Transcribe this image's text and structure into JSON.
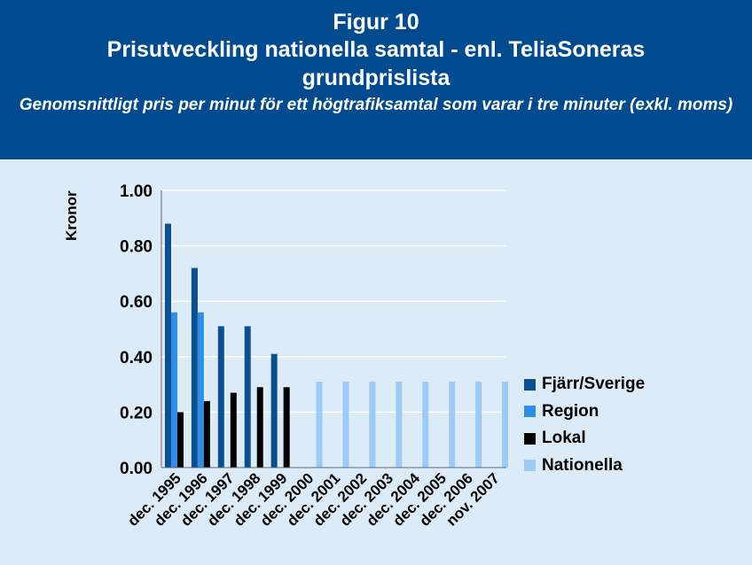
{
  "header": {
    "figure_label": "Figur 10",
    "title": "Prisutveckling nationella samtal - enl. TeliaSoneras grundprislista",
    "subtitle": "Genomsnittligt pris per minut för ett högtrafiksamtal som varar i tre minuter (exkl. moms)"
  },
  "chart_data": {
    "type": "bar",
    "ylabel": "Kronor",
    "ylim": [
      0,
      1
    ],
    "yticks": [
      "0.00",
      "0.20",
      "0.40",
      "0.60",
      "0.80",
      "1.00"
    ],
    "grid": true,
    "legend_position": "right",
    "categories": [
      "dec. 1995",
      "dec. 1996",
      "dec. 1997",
      "dec. 1998",
      "dec. 1999",
      "dec. 2000",
      "dec. 2001",
      "dec. 2002",
      "dec. 2003",
      "dec. 2004",
      "dec. 2005",
      "dec. 2006",
      "nov. 2007"
    ],
    "series": [
      {
        "name": "Fjärr/Sverige",
        "color": "#0a4f8f",
        "values": [
          0.88,
          0.72,
          0.51,
          0.51,
          0.41,
          null,
          null,
          null,
          null,
          null,
          null,
          null,
          null
        ]
      },
      {
        "name": "Region",
        "color": "#2e8ee8",
        "values": [
          0.56,
          0.56,
          null,
          null,
          null,
          null,
          null,
          null,
          null,
          null,
          null,
          null,
          null
        ]
      },
      {
        "name": "Lokal",
        "color": "#000000",
        "values": [
          0.2,
          0.24,
          0.27,
          0.29,
          0.29,
          null,
          null,
          null,
          null,
          null,
          null,
          null,
          null
        ]
      },
      {
        "name": "Nationella",
        "color": "#9dcbf5",
        "values": [
          null,
          null,
          null,
          null,
          null,
          0.31,
          0.31,
          0.31,
          0.31,
          0.31,
          0.31,
          0.31,
          0.31
        ]
      }
    ]
  }
}
